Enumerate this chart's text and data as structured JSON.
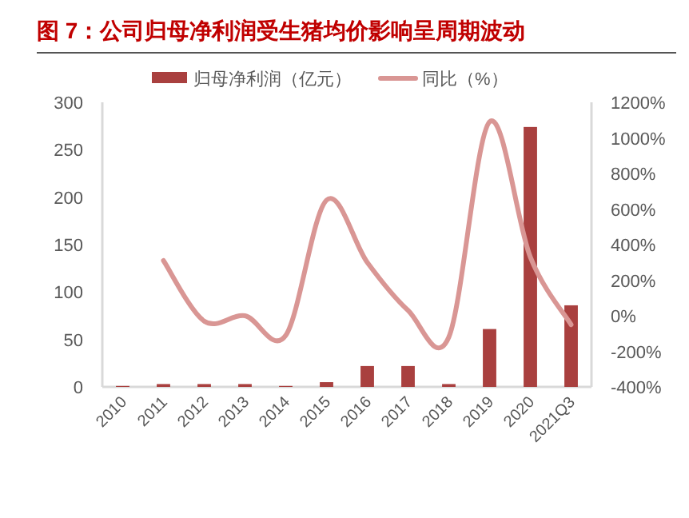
{
  "chart_data": {
    "type": "bar",
    "title": "图 7：公司归母净利润受生猪均价影响呈周期波动",
    "categories": [
      "2010",
      "2011",
      "2012",
      "2013",
      "2014",
      "2015",
      "2016",
      "2017",
      "2018",
      "2019",
      "2020",
      "2021Q3"
    ],
    "series": [
      {
        "name": "归母净利润（亿元）",
        "color": "#a9403f",
        "values": [
          1,
          3,
          3,
          3,
          1,
          5,
          22,
          22,
          3,
          61,
          274,
          86
        ]
      },
      {
        "name": "同比（%）",
        "type": "line",
        "axis": "y2",
        "color": "#d99694",
        "values": [
          null,
          310,
          -30,
          0,
          -110,
          650,
          300,
          30,
          -120,
          1090,
          330,
          -50
        ]
      }
    ],
    "ylim": [
      0,
      300
    ],
    "yticks": [
      0,
      50,
      100,
      150,
      200,
      250,
      300
    ],
    "y2lim": [
      -400,
      1200
    ],
    "y2ticks": [
      {
        "value": -400,
        "label": "-400%"
      },
      {
        "value": -200,
        "label": "-200%"
      },
      {
        "value": 0,
        "label": "0%"
      },
      {
        "value": 200,
        "label": "200%"
      },
      {
        "value": 400,
        "label": "400%"
      },
      {
        "value": 600,
        "label": "600%"
      },
      {
        "value": 800,
        "label": "800%"
      },
      {
        "value": 1000,
        "label": "1000%"
      },
      {
        "value": 1200,
        "label": "1200%"
      }
    ],
    "legend": "top",
    "grid": false
  }
}
